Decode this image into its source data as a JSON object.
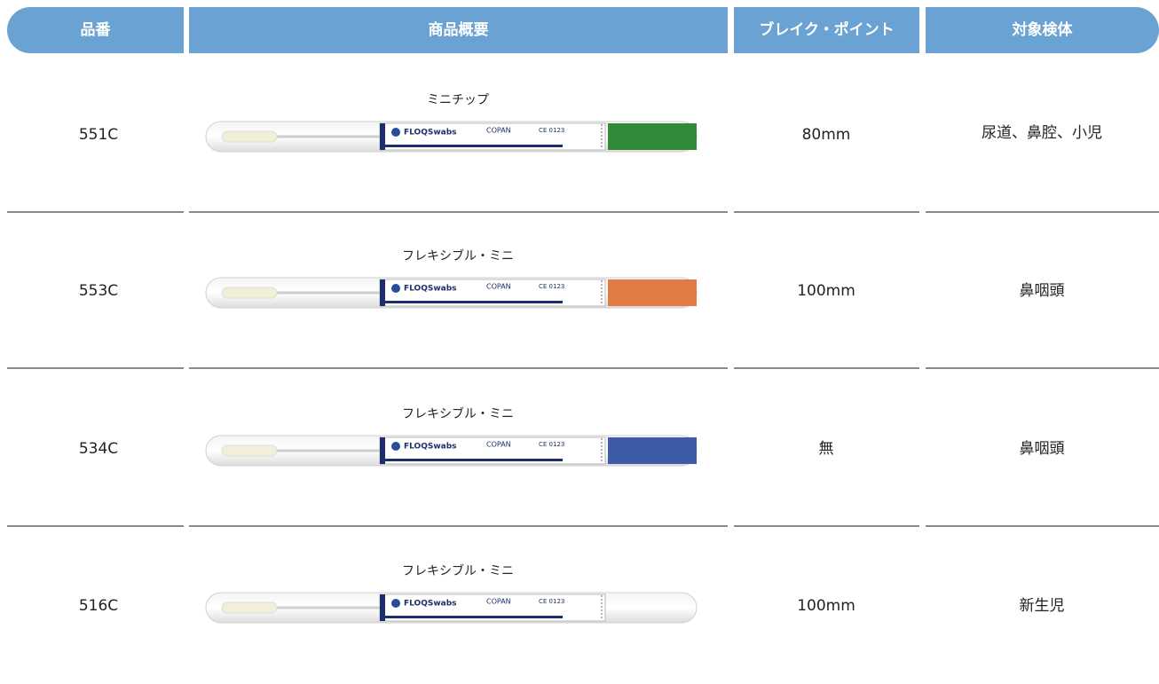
{
  "table": {
    "header": [
      "品番",
      "商品概要",
      "ブレイク・ポイント",
      "対象検体"
    ],
    "rows": [
      {
        "code": "551C",
        "name": "ミニチップ",
        "break_point": "80mm",
        "specimen": "尿道、鼻腔、小児",
        "cap_color": "#2f8a3a"
      },
      {
        "code": "553C",
        "name": "フレキシブル・ミニ",
        "break_point": "100mm",
        "specimen": "鼻咽頭",
        "cap_color": "#e27a45"
      },
      {
        "code": "534C",
        "name": "フレキシブル・ミニ",
        "break_point": "無",
        "specimen": "鼻咽頭",
        "cap_color": "#3c5ca6"
      },
      {
        "code": "516C",
        "name": "フレキシブル・ミニ",
        "break_point": "100mm",
        "specimen": "新生児"
      }
    ]
  },
  "swab_label": {
    "brand": "FLOQSwabs",
    "maker": "COPAN",
    "mark": "CE 0123"
  }
}
